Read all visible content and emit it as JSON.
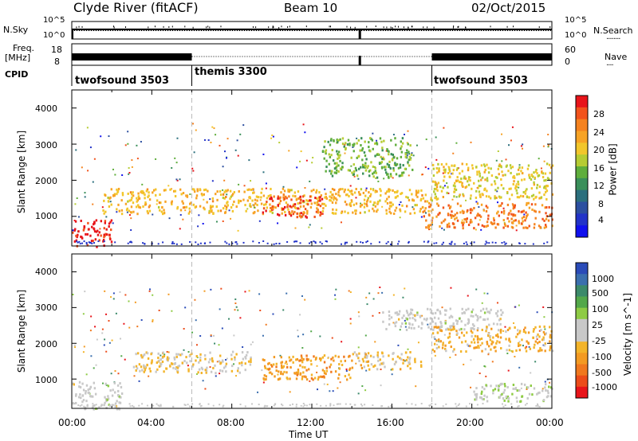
{
  "header": {
    "station": "Clyde River (fitACF)",
    "beam": "Beam 10",
    "date": "02/Oct/2015"
  },
  "side_labels": {
    "nsky": "N.Sky",
    "freq": "Freq.",
    "mhz": "[MHz]",
    "cpid": "CPID",
    "nsearch": "N.Search",
    "nave": "Nave",
    "nsearch_dots": "........",
    "nave_dots": "...."
  },
  "strip_ticks": {
    "noise_left": [
      "10^5",
      "10^0"
    ],
    "noise_right": [
      "10^5",
      "10^0"
    ],
    "freq_left": [
      "18",
      "8"
    ],
    "nave_right": [
      "60",
      "0"
    ]
  },
  "cpid_segments": [
    {
      "label": "twofsound 3503",
      "start_h": 0,
      "end_h": 6
    },
    {
      "label": "themis 3300",
      "start_h": 6,
      "end_h": 18
    },
    {
      "label": "twofsound 3503",
      "start_h": 18,
      "end_h": 24
    }
  ],
  "axes": {
    "ylabel": "Slant Range [km]",
    "xlabel": "Time UT",
    "yticks": [
      "4000",
      "3000",
      "2000",
      "1000"
    ],
    "xticks": [
      "00:00",
      "04:00",
      "08:00",
      "12:00",
      "16:00",
      "20:00",
      "00:00"
    ]
  },
  "colorbars": {
    "power": {
      "label": "Power [dB]",
      "ticks": [
        "28",
        "24",
        "20",
        "16",
        "12",
        "8",
        "4"
      ],
      "colors": [
        "#e8141a",
        "#f2531c",
        "#f5821f",
        "#f7a325",
        "#f2c62b",
        "#b6cc33",
        "#5fae3c",
        "#3a8f5a",
        "#2b6f7d",
        "#2c4fa0",
        "#2233c8",
        "#1010ee"
      ]
    },
    "velocity": {
      "label": "Velocity [m s^-1]",
      "ticks": [
        "1000",
        "500",
        "100",
        "25",
        "-25",
        "-100",
        "-500",
        "-1000"
      ],
      "colors": [
        "#2a4bb8",
        "#3b6fae",
        "#3c8a6a",
        "#53a84a",
        "#8ecb44",
        "#c8c8c8",
        "#c8c8c8",
        "#f3b42a",
        "#f39a22",
        "#f0781e",
        "#ec4c1a",
        "#e8141a"
      ]
    }
  },
  "chart_data": [
    {
      "type": "heatmap",
      "title": "Clyde River (fitACF) Beam 10 02/Oct/2015",
      "variable": "Power",
      "unit": "dB",
      "x_range_hours_ut": [
        0,
        24
      ],
      "ylim_km": [
        180,
        4500
      ],
      "colorbar_range": [
        0,
        30
      ],
      "grid": false,
      "scatter_bands": [
        {
          "x_h": [
            0.0,
            2.0
          ],
          "range_km": [
            180,
            950
          ],
          "value_db": 29
        },
        {
          "x_h": [
            1.5,
            18.0
          ],
          "range_km": [
            1100,
            1800
          ],
          "value_db": 20
        },
        {
          "x_h": [
            9.5,
            12.5
          ],
          "range_km": [
            1000,
            1600
          ],
          "value_db": 27
        },
        {
          "x_h": [
            12.5,
            17.0
          ],
          "range_km": [
            2100,
            3200
          ],
          "value_db": 14
        },
        {
          "x_h": [
            17.5,
            24.0
          ],
          "range_km": [
            700,
            1400
          ],
          "value_db": 24
        },
        {
          "x_h": [
            18.0,
            24.0
          ],
          "range_km": [
            1500,
            2500
          ],
          "value_db": 18
        }
      ]
    },
    {
      "type": "heatmap",
      "title": "Clyde River (fitACF) Beam 10 02/Oct/2015",
      "variable": "Velocity",
      "unit": "m s^-1",
      "x_range_hours_ut": [
        0,
        24
      ],
      "ylim_km": [
        180,
        4500
      ],
      "colorbar_range": [
        -1000,
        1000
      ],
      "grid": false,
      "scatter_bands": [
        {
          "x_h": [
            0.0,
            2.5
          ],
          "range_km": [
            180,
            950
          ],
          "value_ms": 0
        },
        {
          "x_h": [
            3.0,
            9.0
          ],
          "range_km": [
            1200,
            1800
          ],
          "value_ms": -150
        },
        {
          "x_h": [
            9.5,
            14.0
          ],
          "range_km": [
            1000,
            1700
          ],
          "value_ms": -400
        },
        {
          "x_h": [
            14.0,
            17.5
          ],
          "range_km": [
            1300,
            1800
          ],
          "value_ms": -200
        },
        {
          "x_h": [
            15.5,
            21.5
          ],
          "range_km": [
            2400,
            3000
          ],
          "value_ms": 0
        },
        {
          "x_h": [
            18.0,
            24.0
          ],
          "range_km": [
            1800,
            2500
          ],
          "value_ms": -300
        },
        {
          "x_h": [
            20.0,
            24.0
          ],
          "range_km": [
            400,
            900
          ],
          "value_ms": 100
        }
      ]
    }
  ]
}
